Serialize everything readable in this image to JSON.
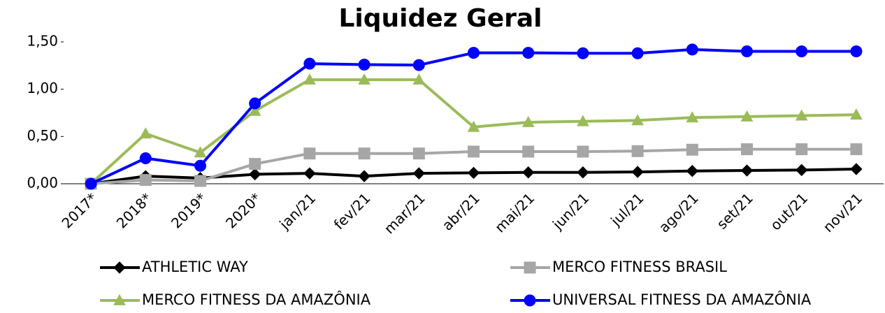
{
  "chart_data": {
    "type": "line",
    "title": "Liquidez Geral",
    "categories": [
      "2017*",
      "2018*",
      "2019*",
      "2020*",
      "jan/21",
      "fev/21",
      "mar/21",
      "abr/21",
      "mai/21",
      "jun/21",
      "jul/21",
      "ago/21",
      "set/21",
      "out/21",
      "nov/21"
    ],
    "series": [
      {
        "name": "ATHLETIC WAY",
        "color": "#000000",
        "marker": "diamond",
        "values": [
          0,
          0.08,
          0.06,
          0.1,
          0.11,
          0.08,
          0.11,
          0.115,
          0.12,
          0.12,
          0.125,
          0.135,
          0.14,
          0.145,
          0.155
        ]
      },
      {
        "name": "MERCO FITNESS BRASIL",
        "color": "#a6a6a6",
        "marker": "square",
        "values": [
          0,
          0.04,
          0.03,
          0.21,
          0.32,
          0.32,
          0.32,
          0.34,
          0.34,
          0.34,
          0.345,
          0.36,
          0.365,
          0.365,
          0.365
        ]
      },
      {
        "name": "MERCO FITNESS DA AMAZÔNIA",
        "color": "#9bbb59",
        "marker": "triangle",
        "values": [
          0,
          0.53,
          0.33,
          0.77,
          1.1,
          1.1,
          1.1,
          0.6,
          0.65,
          0.66,
          0.67,
          0.7,
          0.71,
          0.72,
          0.73
        ]
      },
      {
        "name": "UNIVERSAL FITNESS DA AMAZÔNIA",
        "color": "#0000ff",
        "marker": "circle",
        "values": [
          0,
          0.27,
          0.19,
          0.85,
          1.27,
          1.26,
          1.255,
          1.385,
          1.385,
          1.38,
          1.38,
          1.42,
          1.4,
          1.4,
          1.4
        ]
      }
    ],
    "ylim": [
      0,
      1.5
    ],
    "yticks": [
      {
        "value": 0,
        "label": "0,00"
      },
      {
        "value": 0.5,
        "label": "0,50"
      },
      {
        "value": 1,
        "label": "1,00"
      },
      {
        "value": 1.5,
        "label": "1,50"
      }
    ],
    "grid": false,
    "legend": "bottom"
  }
}
